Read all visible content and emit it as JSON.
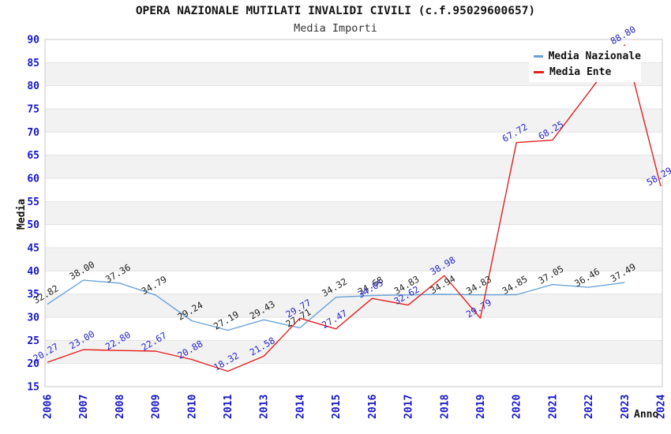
{
  "title": "OPERA NAZIONALE MUTILATI INVALIDI CIVILI (c.f.95029600657)",
  "subtitle": "Media Importi",
  "axes": {
    "y_label": "Media",
    "x_label": "Anno",
    "y_tick_min": 15,
    "y_tick_max": 90,
    "y_tick_step": 5,
    "tick_color": "#1515cc"
  },
  "legend": {
    "items": [
      {
        "label": "Media Nazionale",
        "color": "#6ba3d8"
      },
      {
        "label": "Media Ente",
        "color": "#e61e1e"
      }
    ]
  },
  "chart_data": {
    "type": "line",
    "categories": [
      "2006",
      "2007",
      "2008",
      "2009",
      "2010",
      "2011",
      "2013",
      "2014",
      "2015",
      "2016",
      "2017",
      "2018",
      "2019",
      "2020",
      "2021",
      "2022",
      "2023",
      "2024"
    ],
    "ylim": [
      15,
      90
    ],
    "grid": "horizontal",
    "band_fill": "#f2f2f2",
    "grid_color": "#e3e3e3",
    "border_color": "#c9c9c9",
    "legend_position": "top-right",
    "series": [
      {
        "name": "Media Nazionale",
        "color": "#6ba3d8",
        "label_color": "#1f1f1f",
        "values": [
          32.82,
          38.0,
          37.36,
          34.79,
          29.24,
          27.19,
          29.43,
          27.71,
          34.32,
          34.68,
          34.83,
          34.94,
          34.83,
          34.85,
          37.05,
          36.46,
          37.49,
          null
        ],
        "labels": [
          "32.82",
          "38.00",
          "37.36",
          "34.79",
          "29.24",
          "27.19",
          "29.43",
          "27.71",
          "34.32",
          "34.68",
          "34.83",
          "34.94",
          "34.83",
          "34.85",
          "37.05",
          "36.46",
          "37.49",
          ""
        ]
      },
      {
        "name": "Media Ente",
        "color": "#e61e1e",
        "label_color": "#2626cc",
        "values": [
          20.27,
          23.0,
          22.8,
          22.67,
          20.88,
          18.32,
          21.58,
          29.77,
          27.47,
          34.05,
          32.62,
          38.98,
          29.79,
          67.72,
          68.25,
          null,
          88.8,
          58.29
        ],
        "labels": [
          "20.27",
          "23.00",
          "22.80",
          "22.67",
          "20.88",
          "18.32",
          "21.58",
          "29.77",
          "27.47",
          "34.05",
          "32.62",
          "38.98",
          "29.79",
          "67.72",
          "68.25",
          "",
          "88.80",
          "58.29"
        ]
      }
    ]
  }
}
